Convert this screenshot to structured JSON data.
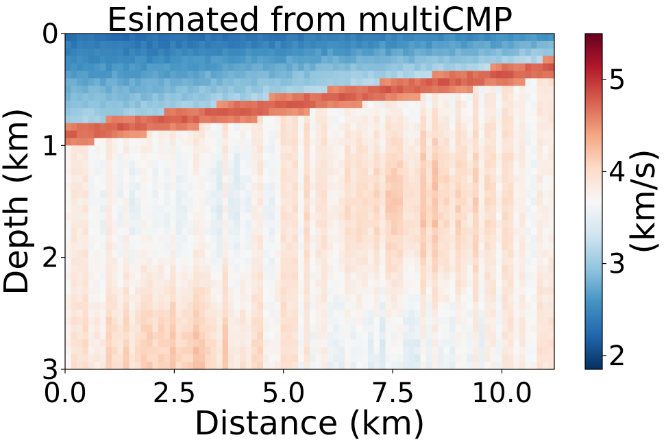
{
  "chart_data": {
    "type": "heatmap",
    "title": "Esimated from multiCMP",
    "xlabel": "Distance (km)",
    "ylabel": "Depth (km)",
    "xlim": [
      0,
      11.2
    ],
    "ylim": [
      0,
      3
    ],
    "y_inverted": true,
    "xticks": [
      0,
      2.5,
      5,
      7.5,
      10
    ],
    "xtick_labels": [
      "0.0",
      "2.5",
      "5.0",
      "7.5",
      "10.0"
    ],
    "yticks": [
      0,
      1,
      2,
      3
    ],
    "ytick_labels": [
      "0",
      "1",
      "2",
      "3"
    ],
    "colorbar": {
      "label": "(km/s)",
      "range": [
        1.85,
        5.5
      ],
      "ticks": [
        2,
        3,
        4,
        5
      ],
      "tick_labels": [
        "2",
        "3",
        "4",
        "5"
      ],
      "colormap": "RdBu_r"
    },
    "layers": [
      {
        "name_hint": "upper",
        "top_depth": 0.0,
        "velocity": 2.4
      },
      {
        "name_hint": "interface",
        "depth_at_x0": 0.9,
        "depth_at_xmax": 0.3,
        "velocity": 4.8
      },
      {
        "name_hint": "lower",
        "velocity": 3.8
      }
    ],
    "grid": false
  }
}
